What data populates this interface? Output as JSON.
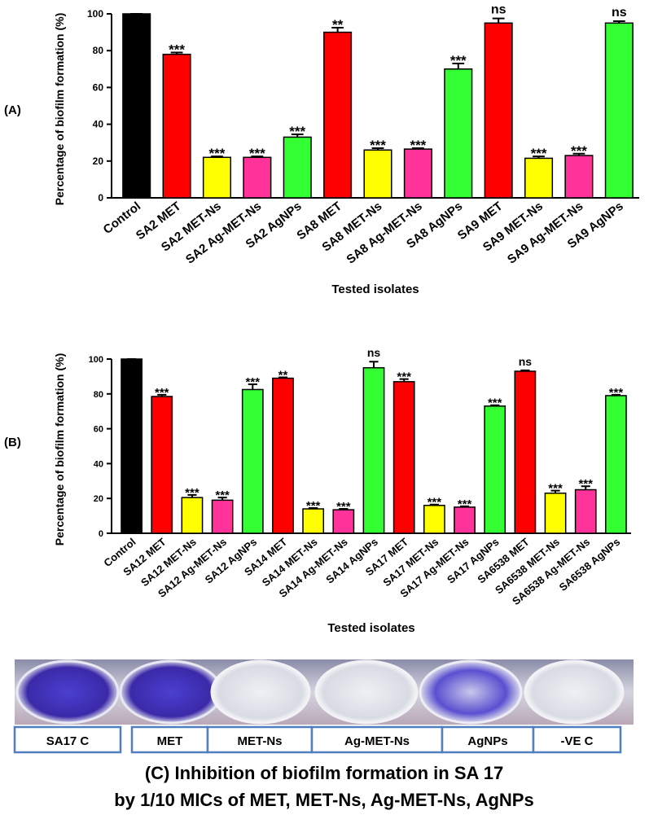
{
  "chart_data": [
    {
      "type": "bar",
      "panel": "(A)",
      "y_label": "Percentage of biofilm formation (%)",
      "x_label": "Tested isolates",
      "categories": [
        "Control",
        "SA2 MET",
        "SA2 MET-Ns",
        "SA2 Ag-MET-Ns",
        "SA2 AgNPs",
        "SA8 MET",
        "SA8 MET-Ns",
        "SA8 Ag-MET-Ns",
        "SA8 AgNPs",
        "SA9 MET",
        "SA9 MET-Ns",
        "SA9 Ag-MET-Ns",
        "SA9 AgNPs"
      ],
      "values": [
        100,
        78,
        22,
        22,
        33,
        90,
        26,
        26.5,
        70,
        95,
        21.5,
        23,
        95
      ],
      "errors": [
        0,
        1,
        0.5,
        0.5,
        1.5,
        2.5,
        1,
        0.5,
        3,
        2.5,
        1,
        1,
        1
      ],
      "annotations": [
        null,
        "***",
        "***",
        "***",
        "***",
        "**",
        "***",
        "***",
        "***",
        "ns",
        "***",
        "***",
        "ns"
      ],
      "colors": [
        "#000000",
        "#ff0000",
        "#ffff00",
        "#ff3399",
        "#33ff33",
        "#ff0000",
        "#ffff00",
        "#ff3399",
        "#33ff33",
        "#ff0000",
        "#ffff00",
        "#ff3399",
        "#33ff33"
      ],
      "ylim": [
        0,
        100
      ],
      "yticks": [
        0,
        20,
        40,
        60,
        80,
        100
      ]
    },
    {
      "type": "bar",
      "panel": "(B)",
      "y_label": "Percentage of biofilm formation (%)",
      "x_label": "Tested isolates",
      "categories": [
        "Control",
        "SA12 MET",
        "SA12 MET-Ns",
        "SA12 Ag-MET-Ns",
        "SA12 AgNPs",
        "SA14 MET",
        "SA14 MET-Ns",
        "SA14 Ag-MET-Ns",
        "SA14 AgNPs",
        "SA17 MET",
        "SA17 MET-Ns",
        "SA17 Ag-MET-Ns",
        "SA17 AgNPs",
        "SA6538 MET",
        "SA6538 MET-Ns",
        "SA6538 Ag-MET-Ns",
        "SA6538 AgNPs"
      ],
      "values": [
        100,
        78.5,
        20.5,
        19,
        82.5,
        89,
        14,
        13.5,
        95,
        87,
        16,
        15,
        73,
        93,
        23,
        25,
        79
      ],
      "errors": [
        0,
        1,
        1.5,
        1.5,
        3,
        0.5,
        0.5,
        0.5,
        3.5,
        1.5,
        0.5,
        0.5,
        0.5,
        0.5,
        1.5,
        2,
        0.5
      ],
      "annotations": [
        null,
        "***",
        "***",
        "***",
        "***",
        "**",
        "***",
        "***",
        "ns",
        "***",
        "***",
        "***",
        "***",
        "ns",
        "***",
        "***",
        "***"
      ],
      "colors": [
        "#000000",
        "#ff0000",
        "#ffff00",
        "#ff3399",
        "#33ff33",
        "#ff0000",
        "#ffff00",
        "#ff3399",
        "#33ff33",
        "#ff0000",
        "#ffff00",
        "#ff3399",
        "#33ff33",
        "#ff0000",
        "#ffff00",
        "#ff3399",
        "#33ff33"
      ],
      "ylim": [
        0,
        100
      ],
      "yticks": [
        0,
        20,
        40,
        60,
        80,
        100
      ]
    }
  ],
  "panel_c": {
    "wells": [
      "SA17 C",
      "MET",
      "MET-Ns",
      "Ag-MET-Ns",
      "AgNPs",
      "-VE C"
    ],
    "caption": [
      "(C) Inhibition of biofilm formation in SA 17",
      "by 1/10 MICs of MET, MET-Ns, Ag-MET-Ns, AgNPs"
    ]
  }
}
